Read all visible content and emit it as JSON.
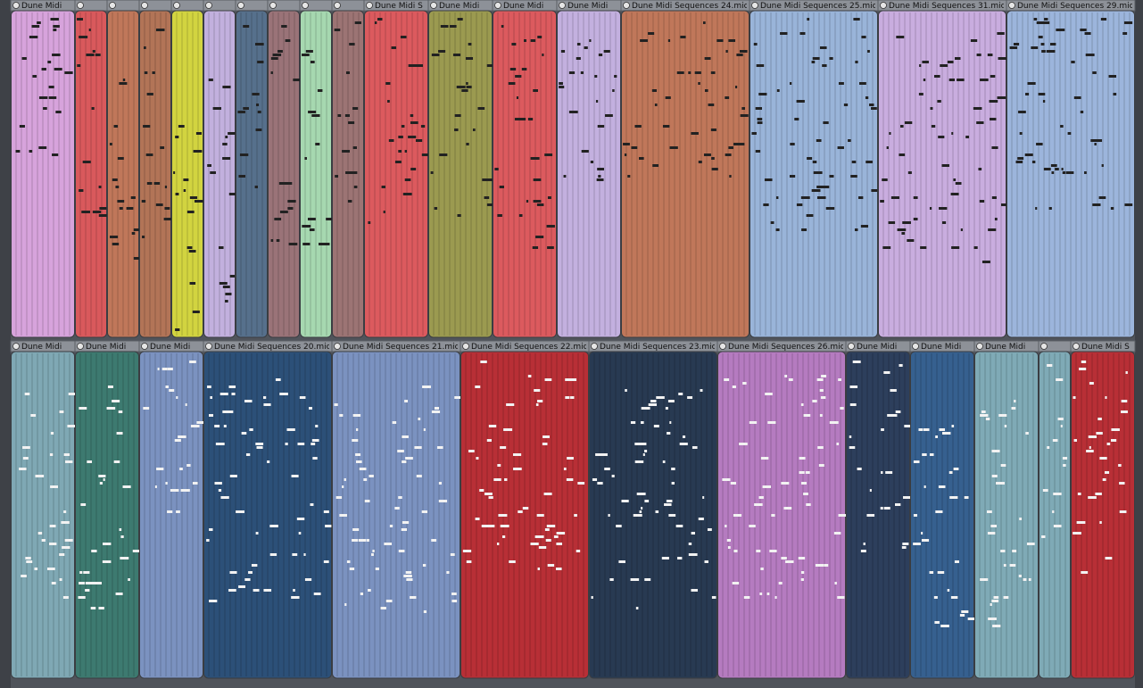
{
  "track_1": {
    "clip_labels": [
      "Dune Midi",
      "Dune Midi S",
      "Dune Midi",
      "Dune Midi",
      "Dune Midi",
      "Dune Midi Sequences 24.mic",
      "Dune Midi Sequences 25.mic",
      "Dune Midi Sequences 31.mic",
      "Dune Midi Sequences 29.mic"
    ]
  },
  "track_2": {
    "clip_labels": [
      "Dune Midi",
      "Dune Midi",
      "Dune Midi",
      "Dune Midi Sequences 20.mic",
      "Dune Midi Sequences 21.mic",
      "Dune Midi Sequences 22.mic",
      "Dune Midi Sequences 23.mic",
      "Dune Midi Sequences 26.mic",
      "Dune Midi",
      "Dune Midi",
      "Dune Midi",
      "Dune Midi S"
    ]
  }
}
